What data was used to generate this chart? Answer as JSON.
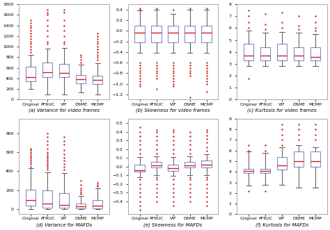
{
  "categories": [
    "Original",
    "PFRUC",
    "VIF",
    "DSME",
    "MCMP"
  ],
  "subplot_titles": [
    "(a) Variance for video frames",
    "(b) Skewness for video frames",
    "(c) Kurtosis for video frames",
    "(d) Variance for MAFDs",
    "(e) Skewness for MAFDs",
    "(f) Kurtosis for MAFDs"
  ],
  "box_color": "#8888cc",
  "median_color": "#cc2222",
  "whisker_color": "#555555",
  "outlier_color": "#cc2222",
  "background_color": "#ffffff",
  "panels": [
    {
      "ylim": [
        0,
        1800
      ],
      "yticks": [
        0,
        200,
        400,
        600,
        800,
        1000,
        1200,
        1400,
        1600,
        1800
      ],
      "boxes": [
        {
          "q1": 350,
          "med": 420,
          "q3": 620,
          "whislo": 200,
          "whishi": 840,
          "fliers_high": [
            900,
            950,
            1000,
            1050,
            1100,
            1150,
            1200,
            1250,
            1300,
            1350,
            1400,
            1450,
            1500
          ],
          "fliers_low": []
        },
        {
          "q1": 430,
          "med": 520,
          "q3": 700,
          "whislo": 100,
          "whishi": 960,
          "fliers_high": [
            1050,
            1100,
            1200,
            1300,
            1400,
            1500,
            1600,
            1650,
            1700
          ],
          "fliers_low": []
        },
        {
          "q1": 420,
          "med": 510,
          "q3": 680,
          "whislo": 100,
          "whishi": 980,
          "fliers_high": [
            1050,
            1100,
            1200,
            1300,
            1400,
            1500,
            1650,
            1700
          ],
          "fliers_low": []
        },
        {
          "q1": 310,
          "med": 380,
          "q3": 460,
          "whislo": 140,
          "whishi": 660,
          "fliers_high": [
            700,
            750,
            800,
            850
          ],
          "fliers_low": []
        },
        {
          "q1": 300,
          "med": 370,
          "q3": 450,
          "whislo": 100,
          "whishi": 690,
          "fliers_high": [
            750,
            800,
            850,
            900,
            950,
            1000,
            1050,
            1100,
            1150,
            1200,
            1250
          ],
          "fliers_low": []
        }
      ]
    },
    {
      "ylim": [
        -1.3,
        0.5
      ],
      "yticks": [
        -1.2,
        -1.0,
        -0.8,
        -0.6,
        -0.4,
        -0.2,
        0.0,
        0.2,
        0.4
      ],
      "boxes": [
        {
          "q1": -0.22,
          "med": -0.04,
          "q3": 0.1,
          "whislo": -0.42,
          "whishi": 0.38,
          "fliers_high": [
            0.4,
            0.42
          ],
          "fliers_low": [
            -0.6,
            -0.65,
            -0.7,
            -0.75,
            -0.8,
            -0.85,
            -0.9,
            -0.95,
            -1.0,
            -1.05
          ]
        },
        {
          "q1": -0.22,
          "med": -0.03,
          "q3": 0.1,
          "whislo": -0.42,
          "whishi": 0.4,
          "fliers_high": [
            0.42
          ],
          "fliers_low": [
            -0.6,
            -0.65,
            -0.7,
            -0.75,
            -0.8,
            -0.85,
            -0.9,
            -1.1
          ]
        },
        {
          "q1": -0.22,
          "med": -0.03,
          "q3": 0.1,
          "whislo": -0.42,
          "whishi": 0.32,
          "fliers_high": [
            0.4
          ],
          "fliers_low": [
            -0.6,
            -0.65,
            -0.7,
            -0.75,
            -0.8,
            -0.85,
            -0.9,
            -0.95,
            -1.0,
            -1.05
          ]
        },
        {
          "q1": -0.22,
          "med": -0.03,
          "q3": 0.1,
          "whislo": -0.42,
          "whishi": 0.4,
          "fliers_high": [
            0.42
          ],
          "fliers_low": [
            -0.6,
            -0.65,
            -0.7,
            -0.75,
            -0.8,
            -0.85,
            -1.25
          ]
        },
        {
          "q1": -0.22,
          "med": -0.03,
          "q3": 0.1,
          "whislo": -0.42,
          "whishi": 0.4,
          "fliers_high": [
            0.42
          ],
          "fliers_low": [
            -0.6,
            -0.65,
            -0.7,
            -0.75,
            -0.8,
            -0.85,
            -0.9,
            -0.95,
            -1.0,
            -1.15
          ]
        }
      ]
    },
    {
      "ylim": [
        0,
        8
      ],
      "yticks": [
        0,
        1,
        2,
        3,
        4,
        5,
        6,
        7,
        8
      ],
      "boxes": [
        {
          "q1": 3.3,
          "med": 3.7,
          "q3": 4.7,
          "whislo": 2.8,
          "whishi": 5.8,
          "fliers_high": [
            6.0,
            6.5,
            7.0,
            7.5
          ],
          "fliers_low": [
            1.8
          ]
        },
        {
          "q1": 3.3,
          "med": 3.7,
          "q3": 4.4,
          "whislo": 2.8,
          "whishi": 5.6,
          "fliers_high": [
            5.9,
            6.3,
            7.2
          ],
          "fliers_low": []
        },
        {
          "q1": 3.3,
          "med": 3.7,
          "q3": 4.7,
          "whislo": 2.8,
          "whishi": 5.7,
          "fliers_high": [
            6.0,
            6.5,
            7.3
          ],
          "fliers_low": []
        },
        {
          "q1": 3.3,
          "med": 3.7,
          "q3": 4.4,
          "whislo": 2.8,
          "whishi": 5.6,
          "fliers_high": [
            5.9,
            6.2,
            7.0
          ],
          "fliers_low": []
        },
        {
          "q1": 3.3,
          "med": 3.6,
          "q3": 4.4,
          "whislo": 2.8,
          "whishi": 5.5,
          "fliers_high": [
            5.8,
            6.0,
            6.5,
            7.0
          ],
          "fliers_low": []
        }
      ]
    },
    {
      "ylim": [
        -50,
        950
      ],
      "yticks": [
        0,
        200,
        400,
        600,
        800
      ],
      "boxes": [
        {
          "q1": 40,
          "med": 100,
          "q3": 210,
          "whislo": 0,
          "whishi": 430,
          "fliers_high": [
            450,
            480,
            500,
            520,
            540,
            560,
            580,
            600,
            620,
            640
          ],
          "fliers_low": []
        },
        {
          "q1": 20,
          "med": 60,
          "q3": 200,
          "whislo": 0,
          "whishi": 390,
          "fliers_high": [
            420,
            440,
            460,
            480,
            500,
            520,
            540,
            560,
            580,
            600,
            640,
            680,
            720,
            760,
            800
          ],
          "fliers_low": []
        },
        {
          "q1": 20,
          "med": 50,
          "q3": 170,
          "whislo": 0,
          "whishi": 380,
          "fliers_high": [
            420,
            450,
            480,
            510,
            540,
            580,
            620,
            680,
            720,
            760
          ],
          "fliers_low": []
        },
        {
          "q1": 10,
          "med": 30,
          "q3": 60,
          "whislo": 0,
          "whishi": 140,
          "fliers_high": [
            160,
            180,
            200,
            220,
            260,
            300
          ],
          "fliers_low": []
        },
        {
          "q1": 10,
          "med": 40,
          "q3": 100,
          "whislo": 0,
          "whishi": 220,
          "fliers_high": [
            240,
            260,
            280
          ],
          "fliers_low": []
        }
      ]
    },
    {
      "ylim": [
        -0.55,
        0.55
      ],
      "yticks": [
        -0.4,
        -0.3,
        -0.2,
        -0.1,
        0.0,
        0.1,
        0.2,
        0.3,
        0.4,
        0.5
      ],
      "boxes": [
        {
          "q1": -0.06,
          "med": -0.04,
          "q3": 0.02,
          "whislo": -0.12,
          "whishi": 0.11,
          "fliers_high": [
            0.15,
            0.2,
            0.25,
            0.3,
            0.35,
            0.4,
            0.45
          ],
          "fliers_low": [
            -0.15,
            -0.2,
            -0.25,
            -0.3,
            -0.35,
            -0.4,
            -0.45,
            -0.5
          ]
        },
        {
          "q1": -0.01,
          "med": 0.01,
          "q3": 0.05,
          "whislo": -0.1,
          "whishi": 0.12,
          "fliers_high": [
            0.15,
            0.2,
            0.25,
            0.3,
            0.35,
            0.4,
            0.42
          ],
          "fliers_low": [
            -0.12,
            -0.15,
            -0.2,
            -0.25,
            -0.3,
            -0.35,
            -0.4
          ]
        },
        {
          "q1": -0.05,
          "med": -0.02,
          "q3": 0.02,
          "whislo": -0.11,
          "whishi": 0.11,
          "fliers_high": [
            0.15,
            0.2,
            0.25,
            0.3,
            0.35,
            0.4,
            0.42
          ],
          "fliers_low": [
            -0.15,
            -0.2,
            -0.25,
            -0.3,
            -0.35,
            -0.4,
            -0.45
          ]
        },
        {
          "q1": -0.01,
          "med": 0.01,
          "q3": 0.05,
          "whislo": -0.1,
          "whishi": 0.12,
          "fliers_high": [
            0.15,
            0.2,
            0.25,
            0.3,
            0.35,
            0.4
          ],
          "fliers_low": [
            -0.12,
            -0.15,
            -0.2,
            -0.25,
            -0.3,
            -0.35,
            -0.4
          ]
        },
        {
          "q1": -0.01,
          "med": 0.02,
          "q3": 0.07,
          "whislo": -0.1,
          "whishi": 0.14,
          "fliers_high": [
            0.18,
            0.22,
            0.28,
            0.32,
            0.36,
            0.4,
            0.42
          ],
          "fliers_low": [
            -0.12,
            -0.15,
            -0.2,
            -0.25,
            -0.3,
            -0.35,
            -0.4,
            -0.45
          ]
        }
      ]
    },
    {
      "ylim": [
        0,
        9
      ],
      "yticks": [
        0,
        1,
        2,
        3,
        4,
        5,
        6,
        7,
        8,
        9
      ],
      "boxes": [
        {
          "q1": 3.9,
          "med": 4.1,
          "q3": 4.3,
          "whislo": 2.7,
          "whishi": 5.9,
          "fliers_high": [
            6.0,
            6.5
          ],
          "fliers_low": [
            2.2
          ]
        },
        {
          "q1": 3.9,
          "med": 4.1,
          "q3": 4.3,
          "whislo": 2.8,
          "whishi": 5.8,
          "fliers_high": [
            6.0,
            6.5
          ],
          "fliers_low": [
            2.2
          ]
        },
        {
          "q1": 4.2,
          "med": 4.6,
          "q3": 5.4,
          "whislo": 2.8,
          "whishi": 6.3,
          "fliers_high": [
            6.5,
            7.0,
            7.5,
            8.0,
            8.5
          ],
          "fliers_low": []
        },
        {
          "q1": 4.5,
          "med": 5.0,
          "q3": 5.9,
          "whislo": 2.5,
          "whishi": 6.5,
          "fliers_high": [
            7.0,
            7.5,
            8.0,
            8.5
          ],
          "fliers_low": []
        },
        {
          "q1": 4.5,
          "med": 5.0,
          "q3": 5.9,
          "whislo": 2.5,
          "whishi": 6.3,
          "fliers_high": [
            7.0,
            7.5,
            8.0,
            8.5
          ],
          "fliers_low": []
        }
      ]
    }
  ]
}
